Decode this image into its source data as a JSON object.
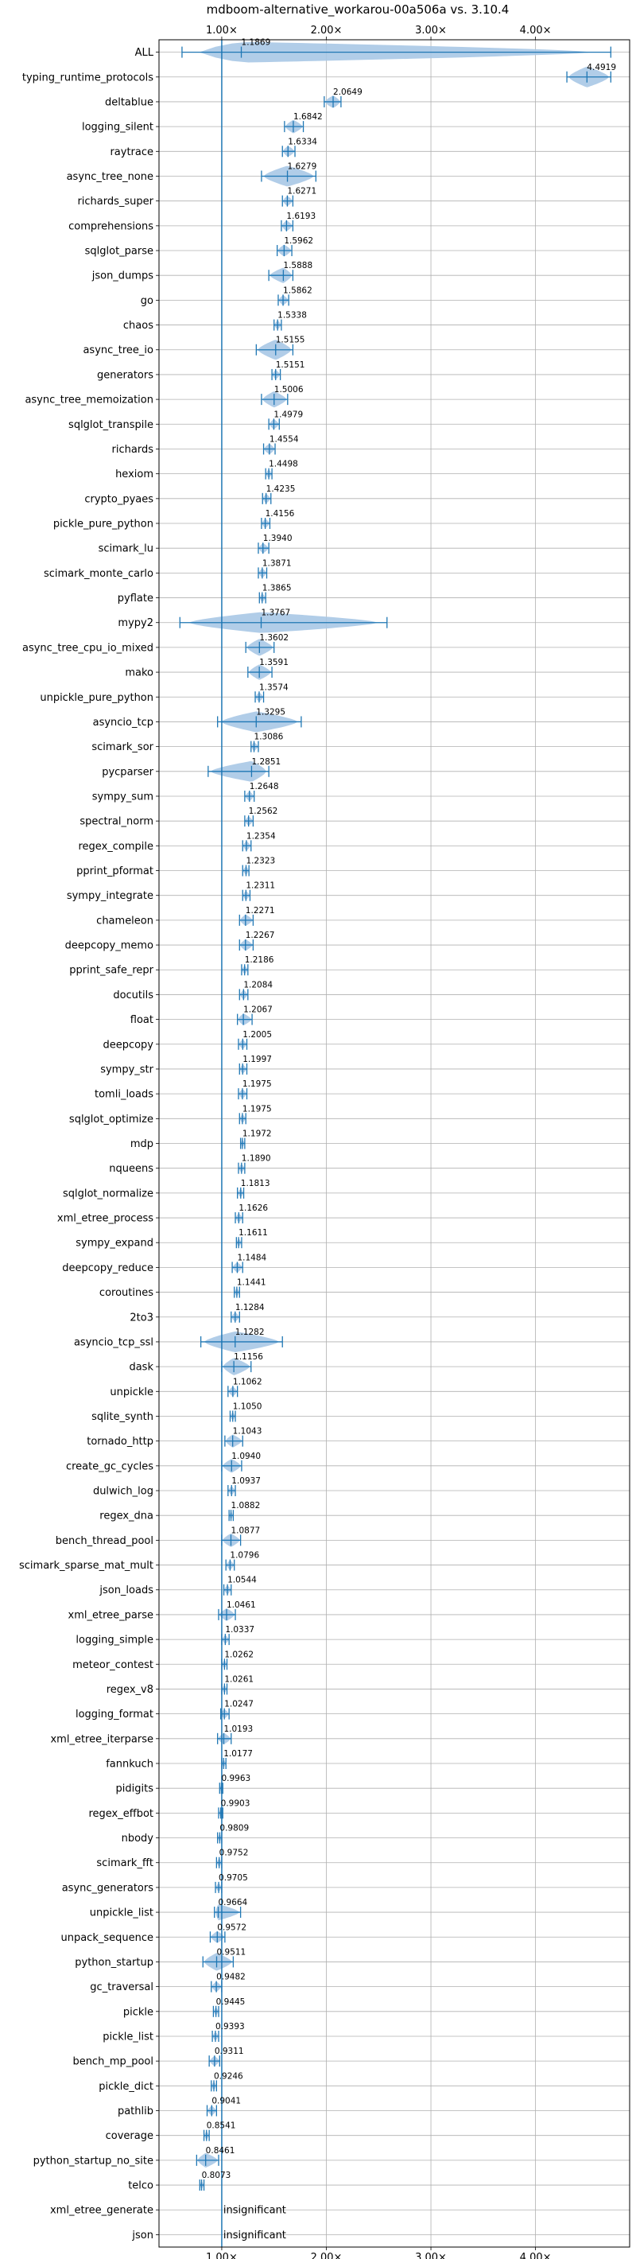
{
  "chart_data": {
    "type": "violin",
    "title": "mdboom-alternative_workarou-00a506a vs. 3.10.4",
    "xlabel": "",
    "ylabel": "",
    "xlim": [
      0.4,
      4.9
    ],
    "x_ticks": [
      {
        "value": 1,
        "label": "1.00×"
      },
      {
        "value": 2,
        "label": "2.00×"
      },
      {
        "value": 3,
        "label": "3.00×"
      },
      {
        "value": 4,
        "label": "4.00×"
      }
    ],
    "grid": true,
    "reference_line": 1.0,
    "color": "#1f77b4",
    "fill_color": "#a9c8e6",
    "benchmarks": [
      {
        "name": "ALL",
        "value": 1.1869,
        "label": "1.1869",
        "min": 0.62,
        "max": 4.72
      },
      {
        "name": "typing_runtime_protocols",
        "value": 4.4919,
        "label": "4.4919",
        "min": 4.3,
        "max": 4.72
      },
      {
        "name": "deltablue",
        "value": 2.0649,
        "label": "2.0649",
        "min": 1.98,
        "max": 2.14
      },
      {
        "name": "logging_silent",
        "value": 1.6842,
        "label": "1.6842",
        "min": 1.6,
        "max": 1.78
      },
      {
        "name": "raytrace",
        "value": 1.6334,
        "label": "1.6334",
        "min": 1.58,
        "max": 1.7
      },
      {
        "name": "async_tree_none",
        "value": 1.6279,
        "label": "1.6279",
        "min": 1.38,
        "max": 1.9
      },
      {
        "name": "richards_super",
        "value": 1.6271,
        "label": "1.6271",
        "min": 1.58,
        "max": 1.68
      },
      {
        "name": "comprehensions",
        "value": 1.6193,
        "label": "1.6193",
        "min": 1.57,
        "max": 1.68
      },
      {
        "name": "sqlglot_parse",
        "value": 1.5962,
        "label": "1.5962",
        "min": 1.53,
        "max": 1.67
      },
      {
        "name": "json_dumps",
        "value": 1.5888,
        "label": "1.5888",
        "min": 1.45,
        "max": 1.68
      },
      {
        "name": "go",
        "value": 1.5862,
        "label": "1.5862",
        "min": 1.54,
        "max": 1.64
      },
      {
        "name": "chaos",
        "value": 1.5338,
        "label": "1.5338",
        "min": 1.5,
        "max": 1.57
      },
      {
        "name": "async_tree_io",
        "value": 1.5155,
        "label": "1.5155",
        "min": 1.33,
        "max": 1.68
      },
      {
        "name": "generators",
        "value": 1.5151,
        "label": "1.5151",
        "min": 1.48,
        "max": 1.56
      },
      {
        "name": "async_tree_memoization",
        "value": 1.5006,
        "label": "1.5006",
        "min": 1.38,
        "max": 1.63
      },
      {
        "name": "sqlglot_transpile",
        "value": 1.4979,
        "label": "1.4979",
        "min": 1.45,
        "max": 1.55
      },
      {
        "name": "richards",
        "value": 1.4554,
        "label": "1.4554",
        "min": 1.4,
        "max": 1.51
      },
      {
        "name": "hexiom",
        "value": 1.4498,
        "label": "1.4498",
        "min": 1.42,
        "max": 1.48
      },
      {
        "name": "crypto_pyaes",
        "value": 1.4235,
        "label": "1.4235",
        "min": 1.39,
        "max": 1.47
      },
      {
        "name": "pickle_pure_python",
        "value": 1.4156,
        "label": "1.4156",
        "min": 1.38,
        "max": 1.46
      },
      {
        "name": "scimark_lu",
        "value": 1.394,
        "label": "1.3940",
        "min": 1.35,
        "max": 1.45
      },
      {
        "name": "scimark_monte_carlo",
        "value": 1.3871,
        "label": "1.3871",
        "min": 1.35,
        "max": 1.43
      },
      {
        "name": "pyflate",
        "value": 1.3865,
        "label": "1.3865",
        "min": 1.36,
        "max": 1.42
      },
      {
        "name": "mypy2",
        "value": 1.3767,
        "label": "1.3767",
        "min": 0.6,
        "max": 2.58
      },
      {
        "name": "async_tree_cpu_io_mixed",
        "value": 1.3602,
        "label": "1.3602",
        "min": 1.23,
        "max": 1.5
      },
      {
        "name": "mako",
        "value": 1.3591,
        "label": "1.3591",
        "min": 1.25,
        "max": 1.48
      },
      {
        "name": "unpickle_pure_python",
        "value": 1.3574,
        "label": "1.3574",
        "min": 1.32,
        "max": 1.4
      },
      {
        "name": "asyncio_tcp",
        "value": 1.3295,
        "label": "1.3295",
        "min": 0.96,
        "max": 1.76
      },
      {
        "name": "scimark_sor",
        "value": 1.3086,
        "label": "1.3086",
        "min": 1.28,
        "max": 1.35
      },
      {
        "name": "pycparser",
        "value": 1.2851,
        "label": "1.2851",
        "min": 0.87,
        "max": 1.45
      },
      {
        "name": "sympy_sum",
        "value": 1.2648,
        "label": "1.2648",
        "min": 1.22,
        "max": 1.31
      },
      {
        "name": "spectral_norm",
        "value": 1.2562,
        "label": "1.2562",
        "min": 1.22,
        "max": 1.3
      },
      {
        "name": "regex_compile",
        "value": 1.2354,
        "label": "1.2354",
        "min": 1.2,
        "max": 1.28
      },
      {
        "name": "pprint_pformat",
        "value": 1.2323,
        "label": "1.2323",
        "min": 1.2,
        "max": 1.26
      },
      {
        "name": "sympy_integrate",
        "value": 1.2311,
        "label": "1.2311",
        "min": 1.2,
        "max": 1.27
      },
      {
        "name": "chameleon",
        "value": 1.2271,
        "label": "1.2271",
        "min": 1.17,
        "max": 1.3
      },
      {
        "name": "deepcopy_memo",
        "value": 1.2267,
        "label": "1.2267",
        "min": 1.17,
        "max": 1.3
      },
      {
        "name": "pprint_safe_repr",
        "value": 1.2186,
        "label": "1.2186",
        "min": 1.19,
        "max": 1.25
      },
      {
        "name": "docutils",
        "value": 1.2084,
        "label": "1.2084",
        "min": 1.17,
        "max": 1.25
      },
      {
        "name": "float",
        "value": 1.2067,
        "label": "1.2067",
        "min": 1.15,
        "max": 1.29
      },
      {
        "name": "deepcopy",
        "value": 1.2005,
        "label": "1.2005",
        "min": 1.16,
        "max": 1.24
      },
      {
        "name": "sympy_str",
        "value": 1.1997,
        "label": "1.1997",
        "min": 1.17,
        "max": 1.24
      },
      {
        "name": "tomli_loads",
        "value": 1.1975,
        "label": "1.1975",
        "min": 1.16,
        "max": 1.24
      },
      {
        "name": "sqlglot_optimize",
        "value": 1.1975,
        "label": "1.1975",
        "min": 1.17,
        "max": 1.23
      },
      {
        "name": "mdp",
        "value": 1.1972,
        "label": "1.1972",
        "min": 1.18,
        "max": 1.22
      },
      {
        "name": "nqueens",
        "value": 1.189,
        "label": "1.1890",
        "min": 1.16,
        "max": 1.22
      },
      {
        "name": "sqlglot_normalize",
        "value": 1.1813,
        "label": "1.1813",
        "min": 1.15,
        "max": 1.21
      },
      {
        "name": "xml_etree_process",
        "value": 1.1626,
        "label": "1.1626",
        "min": 1.13,
        "max": 1.2
      },
      {
        "name": "sympy_expand",
        "value": 1.1611,
        "label": "1.1611",
        "min": 1.14,
        "max": 1.19
      },
      {
        "name": "deepcopy_reduce",
        "value": 1.1484,
        "label": "1.1484",
        "min": 1.1,
        "max": 1.2
      },
      {
        "name": "coroutines",
        "value": 1.1441,
        "label": "1.1441",
        "min": 1.12,
        "max": 1.17
      },
      {
        "name": "2to3",
        "value": 1.1284,
        "label": "1.1284",
        "min": 1.09,
        "max": 1.17
      },
      {
        "name": "asyncio_tcp_ssl",
        "value": 1.1282,
        "label": "1.1282",
        "min": 0.8,
        "max": 1.58
      },
      {
        "name": "dask",
        "value": 1.1156,
        "label": "1.1156",
        "min": 1.0,
        "max": 1.28
      },
      {
        "name": "unpickle",
        "value": 1.1062,
        "label": "1.1062",
        "min": 1.06,
        "max": 1.15
      },
      {
        "name": "sqlite_synth",
        "value": 1.105,
        "label": "1.1050",
        "min": 1.08,
        "max": 1.13
      },
      {
        "name": "tornado_http",
        "value": 1.1043,
        "label": "1.1043",
        "min": 1.03,
        "max": 1.2
      },
      {
        "name": "create_gc_cycles",
        "value": 1.094,
        "label": "1.0940",
        "min": 1.0,
        "max": 1.19
      },
      {
        "name": "dulwich_log",
        "value": 1.0937,
        "label": "1.0937",
        "min": 1.06,
        "max": 1.13
      },
      {
        "name": "regex_dna",
        "value": 1.0882,
        "label": "1.0882",
        "min": 1.07,
        "max": 1.11
      },
      {
        "name": "bench_thread_pool",
        "value": 1.0877,
        "label": "1.0877",
        "min": 1.0,
        "max": 1.18
      },
      {
        "name": "scimark_sparse_mat_mult",
        "value": 1.0796,
        "label": "1.0796",
        "min": 1.04,
        "max": 1.12
      },
      {
        "name": "json_loads",
        "value": 1.0544,
        "label": "1.0544",
        "min": 1.02,
        "max": 1.09
      },
      {
        "name": "xml_etree_parse",
        "value": 1.0461,
        "label": "1.0461",
        "min": 0.97,
        "max": 1.13
      },
      {
        "name": "logging_simple",
        "value": 1.0337,
        "label": "1.0337",
        "min": 1.0,
        "max": 1.07
      },
      {
        "name": "meteor_contest",
        "value": 1.0262,
        "label": "1.0262",
        "min": 1.0,
        "max": 1.05
      },
      {
        "name": "regex_v8",
        "value": 1.0261,
        "label": "1.0261",
        "min": 1.0,
        "max": 1.05
      },
      {
        "name": "logging_format",
        "value": 1.0247,
        "label": "1.0247",
        "min": 0.99,
        "max": 1.07
      },
      {
        "name": "xml_etree_iterparse",
        "value": 1.0193,
        "label": "1.0193",
        "min": 0.96,
        "max": 1.09
      },
      {
        "name": "fannkuch",
        "value": 1.0177,
        "label": "1.0177",
        "min": 1.0,
        "max": 1.04
      },
      {
        "name": "pidigits",
        "value": 0.9963,
        "label": "0.9963",
        "min": 0.98,
        "max": 1.01
      },
      {
        "name": "regex_effbot",
        "value": 0.9903,
        "label": "0.9903",
        "min": 0.97,
        "max": 1.01
      },
      {
        "name": "nbody",
        "value": 0.9809,
        "label": "0.9809",
        "min": 0.96,
        "max": 1.0
      },
      {
        "name": "scimark_fft",
        "value": 0.9752,
        "label": "0.9752",
        "min": 0.95,
        "max": 1.0
      },
      {
        "name": "async_generators",
        "value": 0.9705,
        "label": "0.9705",
        "min": 0.94,
        "max": 1.0
      },
      {
        "name": "unpickle_list",
        "value": 0.9664,
        "label": "0.9664",
        "min": 0.93,
        "max": 1.18
      },
      {
        "name": "unpack_sequence",
        "value": 0.9572,
        "label": "0.9572",
        "min": 0.89,
        "max": 1.03
      },
      {
        "name": "python_startup",
        "value": 0.9511,
        "label": "0.9511",
        "min": 0.82,
        "max": 1.11
      },
      {
        "name": "gc_traversal",
        "value": 0.9482,
        "label": "0.9482",
        "min": 0.9,
        "max": 1.0
      },
      {
        "name": "pickle",
        "value": 0.9445,
        "label": "0.9445",
        "min": 0.92,
        "max": 0.97
      },
      {
        "name": "pickle_list",
        "value": 0.9393,
        "label": "0.9393",
        "min": 0.91,
        "max": 0.97
      },
      {
        "name": "bench_mp_pool",
        "value": 0.9311,
        "label": "0.9311",
        "min": 0.88,
        "max": 0.98
      },
      {
        "name": "pickle_dict",
        "value": 0.9246,
        "label": "0.9246",
        "min": 0.9,
        "max": 0.95
      },
      {
        "name": "pathlib",
        "value": 0.9041,
        "label": "0.9041",
        "min": 0.86,
        "max": 0.95
      },
      {
        "name": "coverage",
        "value": 0.8541,
        "label": "0.8541",
        "min": 0.83,
        "max": 0.88
      },
      {
        "name": "python_startup_no_site",
        "value": 0.8461,
        "label": "0.8461",
        "min": 0.76,
        "max": 0.97
      },
      {
        "name": "telco",
        "value": 0.8073,
        "label": "0.8073",
        "min": 0.79,
        "max": 0.83
      },
      {
        "name": "xml_etree_generate",
        "value": null,
        "label": "insignificant"
      },
      {
        "name": "json",
        "value": null,
        "label": "insignificant"
      }
    ]
  }
}
